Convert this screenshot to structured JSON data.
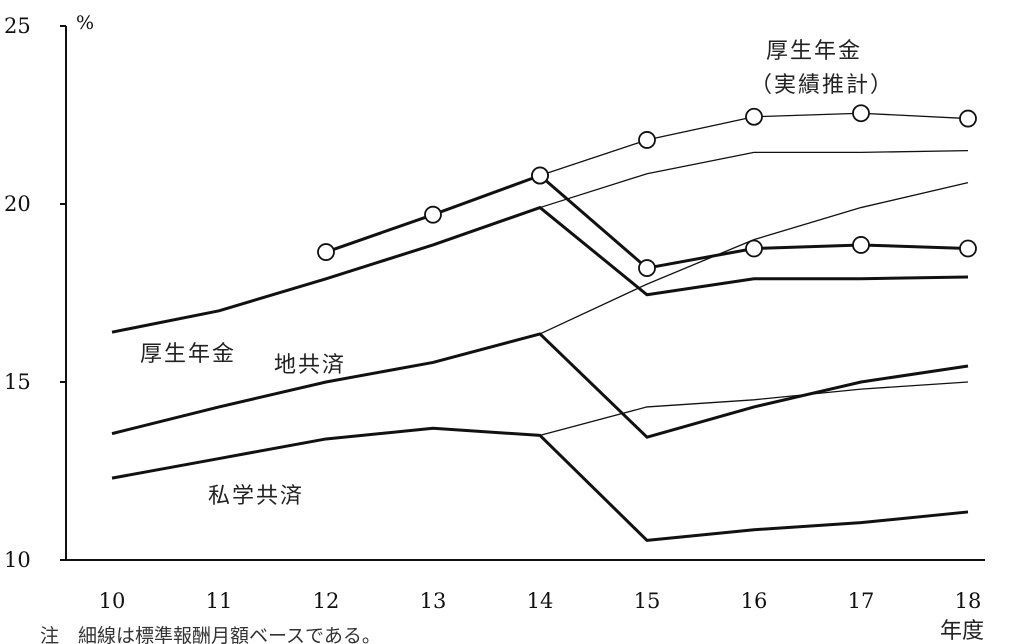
{
  "chart_data": {
    "type": "line",
    "categories": [
      "10",
      "11",
      "12",
      "13",
      "14",
      "15",
      "16",
      "17",
      "18"
    ],
    "xlabel": "年度",
    "ylabel": "%",
    "ylim": [
      10,
      25
    ],
    "yticks": [
      "10",
      "15",
      "20",
      "25"
    ],
    "series": [
      {
        "name": "厚生年金",
        "style": "thick",
        "marker": "none",
        "values": [
          16.4,
          17.0,
          17.9,
          18.85,
          19.9,
          17.45,
          17.9,
          17.9,
          17.95
        ]
      },
      {
        "name": "",
        "style": "thin",
        "marker": "none",
        "values": [
          null,
          null,
          null,
          null,
          19.9,
          20.85,
          21.45,
          21.45,
          21.5
        ]
      },
      {
        "name": "厚生年金（実績推計）",
        "style": "thin",
        "marker": "circle",
        "values": [
          null,
          null,
          null,
          null,
          20.8,
          21.8,
          22.45,
          22.55,
          22.4
        ]
      },
      {
        "name": "",
        "style": "thick",
        "marker": "circle",
        "values": [
          null,
          null,
          18.65,
          19.7,
          20.8,
          18.2,
          18.75,
          18.85,
          18.75
        ]
      },
      {
        "name": "地共済",
        "style": "thick",
        "marker": "none",
        "values": [
          13.55,
          14.3,
          15.0,
          15.55,
          16.35,
          13.45,
          14.3,
          15.0,
          15.45
        ]
      },
      {
        "name": "",
        "style": "thin",
        "marker": "none",
        "values": [
          null,
          null,
          null,
          null,
          16.35,
          17.75,
          19.0,
          19.9,
          20.6
        ]
      },
      {
        "name": "私学共済",
        "style": "thick",
        "marker": "none",
        "values": [
          12.3,
          12.85,
          13.4,
          13.7,
          13.5,
          10.55,
          10.85,
          11.05,
          11.35
        ]
      },
      {
        "name": "",
        "style": "thin",
        "marker": "none",
        "values": [
          null,
          null,
          null,
          null,
          13.5,
          14.3,
          14.5,
          14.8,
          15.0
        ]
      }
    ],
    "annotations": {
      "kosei": "厚生年金",
      "kosei_jisseki_1": "厚生年金",
      "kosei_jisseki_2": "（実績推計）",
      "chikyosai": "地共済",
      "shigaku": "私学共済"
    },
    "footnote": "注　細線は標準報酬月額ベースである。",
    "grid": false,
    "legend": "none"
  }
}
